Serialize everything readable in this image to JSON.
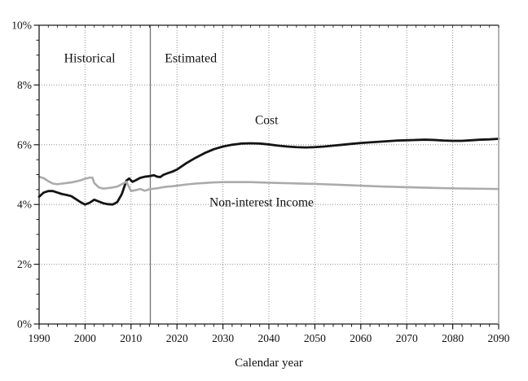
{
  "chart_data": {
    "type": "line",
    "title": "",
    "xlabel": "Calendar year",
    "ylabel": "",
    "xlim": [
      1990,
      2090
    ],
    "ylim": [
      0,
      10
    ],
    "x_major_ticks": [
      1990,
      2000,
      2010,
      2020,
      2030,
      2040,
      2050,
      2060,
      2070,
      2080,
      2090
    ],
    "x_minor_step": 2,
    "y_major_ticks": [
      0,
      2,
      4,
      6,
      8,
      10
    ],
    "y_minor_step": 0.5,
    "y_tick_suffix": "%",
    "grid": "dotted major gridlines, both axes",
    "legend_position": "none (inline annotations)",
    "divider": {
      "x": 2014.2,
      "meaning": "historical / estimated boundary"
    },
    "annotations": [
      {
        "text": "Historical",
        "x": 2001.0,
        "y": 8.9,
        "kind": "zone"
      },
      {
        "text": "Estimated",
        "x": 2023.0,
        "y": 8.9,
        "kind": "zone"
      },
      {
        "text": "Cost",
        "x": 2039.5,
        "y": 6.83,
        "kind": "series"
      },
      {
        "text": "Non-interest Income",
        "x": 2038.4,
        "y": 4.08,
        "kind": "series"
      }
    ],
    "style": {
      "grid_color": "#909090",
      "axis_color": "#1a1a1a",
      "right_border_color": "#ababab",
      "divider_color": "#707070",
      "background": "#ffffff"
    },
    "series": [
      {
        "name": "Cost",
        "color": "#141414",
        "width": 2.8,
        "points": [
          [
            1990,
            4.26
          ],
          [
            1991,
            4.4
          ],
          [
            1992,
            4.45
          ],
          [
            1993,
            4.45
          ],
          [
            1994,
            4.4
          ],
          [
            1995,
            4.35
          ],
          [
            1996,
            4.32
          ],
          [
            1997,
            4.28
          ],
          [
            1998,
            4.18
          ],
          [
            1999,
            4.08
          ],
          [
            2000,
            4.0
          ],
          [
            2001,
            4.06
          ],
          [
            2002,
            4.16
          ],
          [
            2003,
            4.1
          ],
          [
            2004,
            4.04
          ],
          [
            2005,
            4.01
          ],
          [
            2006,
            4.0
          ],
          [
            2007,
            4.08
          ],
          [
            2008,
            4.35
          ],
          [
            2009,
            4.8
          ],
          [
            2009.6,
            4.87
          ],
          [
            2010.3,
            4.76
          ],
          [
            2011,
            4.81
          ],
          [
            2012,
            4.89
          ],
          [
            2013,
            4.93
          ],
          [
            2014,
            4.95
          ],
          [
            2015,
            4.98
          ],
          [
            2015.7,
            4.93
          ],
          [
            2016.4,
            4.92
          ],
          [
            2017,
            4.99
          ],
          [
            2018,
            5.05
          ],
          [
            2019,
            5.1
          ],
          [
            2020,
            5.17
          ],
          [
            2022,
            5.38
          ],
          [
            2024,
            5.56
          ],
          [
            2026,
            5.72
          ],
          [
            2028,
            5.85
          ],
          [
            2030,
            5.94
          ],
          [
            2032,
            6.0
          ],
          [
            2034,
            6.04
          ],
          [
            2036,
            6.05
          ],
          [
            2038,
            6.04
          ],
          [
            2040,
            6.01
          ],
          [
            2042,
            5.97
          ],
          [
            2044,
            5.94
          ],
          [
            2046,
            5.92
          ],
          [
            2048,
            5.91
          ],
          [
            2050,
            5.92
          ],
          [
            2052,
            5.94
          ],
          [
            2054,
            5.97
          ],
          [
            2056,
            6.0
          ],
          [
            2058,
            6.03
          ],
          [
            2060,
            6.06
          ],
          [
            2062,
            6.08
          ],
          [
            2064,
            6.1
          ],
          [
            2066,
            6.12
          ],
          [
            2068,
            6.14
          ],
          [
            2070,
            6.15
          ],
          [
            2072,
            6.16
          ],
          [
            2074,
            6.17
          ],
          [
            2076,
            6.16
          ],
          [
            2078,
            6.14
          ],
          [
            2080,
            6.13
          ],
          [
            2082,
            6.13
          ],
          [
            2084,
            6.15
          ],
          [
            2086,
            6.17
          ],
          [
            2088,
            6.18
          ],
          [
            2090,
            6.2
          ]
        ]
      },
      {
        "name": "Non-interest Income",
        "color": "#ababab",
        "width": 2.6,
        "points": [
          [
            1990,
            4.93
          ],
          [
            1991,
            4.88
          ],
          [
            1992,
            4.78
          ],
          [
            1993,
            4.7
          ],
          [
            1994,
            4.68
          ],
          [
            1995,
            4.7
          ],
          [
            1996,
            4.72
          ],
          [
            1997,
            4.74
          ],
          [
            1998,
            4.77
          ],
          [
            1999,
            4.81
          ],
          [
            2000,
            4.86
          ],
          [
            2001,
            4.9
          ],
          [
            2001.6,
            4.9
          ],
          [
            2002,
            4.72
          ],
          [
            2003,
            4.57
          ],
          [
            2004,
            4.53
          ],
          [
            2005,
            4.55
          ],
          [
            2006,
            4.57
          ],
          [
            2007,
            4.6
          ],
          [
            2008,
            4.68
          ],
          [
            2009,
            4.76
          ],
          [
            2010,
            4.45
          ],
          [
            2011,
            4.48
          ],
          [
            2012,
            4.52
          ],
          [
            2013,
            4.46
          ],
          [
            2014,
            4.51
          ],
          [
            2015,
            4.53
          ],
          [
            2016,
            4.55
          ],
          [
            2017,
            4.58
          ],
          [
            2018,
            4.6
          ],
          [
            2019,
            4.61
          ],
          [
            2020,
            4.63
          ],
          [
            2022,
            4.67
          ],
          [
            2024,
            4.7
          ],
          [
            2026,
            4.72
          ],
          [
            2028,
            4.74
          ],
          [
            2030,
            4.75
          ],
          [
            2033,
            4.75
          ],
          [
            2036,
            4.75
          ],
          [
            2040,
            4.73
          ],
          [
            2045,
            4.71
          ],
          [
            2050,
            4.69
          ],
          [
            2055,
            4.66
          ],
          [
            2060,
            4.63
          ],
          [
            2065,
            4.6
          ],
          [
            2070,
            4.58
          ],
          [
            2075,
            4.56
          ],
          [
            2080,
            4.54
          ],
          [
            2085,
            4.53
          ],
          [
            2090,
            4.52
          ]
        ]
      }
    ]
  }
}
